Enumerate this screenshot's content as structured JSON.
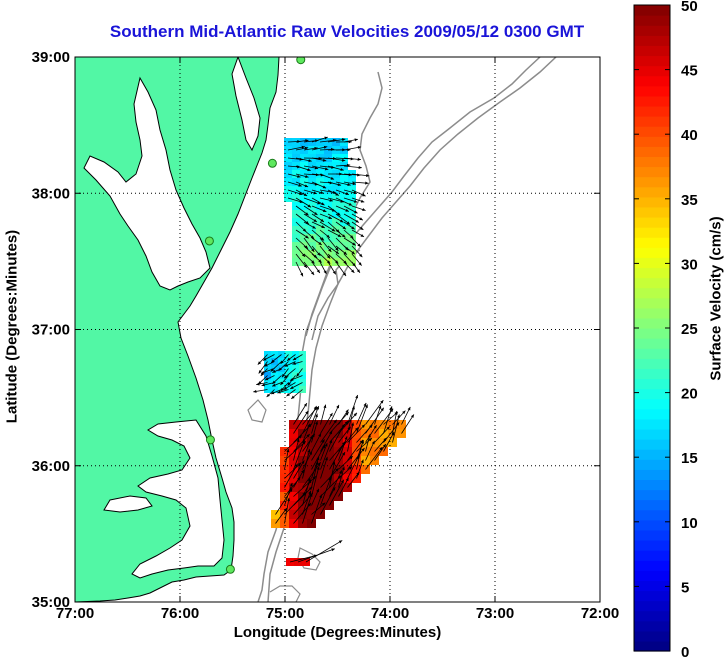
{
  "title": "Southern Mid-Atlantic Raw Velocities 2009/05/12 0300 GMT",
  "x_axis": {
    "label": "Longitude (Degrees:Minutes)",
    "ticks": [
      "77:00",
      "76:00",
      "75:00",
      "74:00",
      "73:00",
      "72:00"
    ]
  },
  "y_axis": {
    "label": "Latitude (Degrees:Minutes)",
    "ticks": [
      "39:00",
      "38:00",
      "37:00",
      "36:00",
      "35:00"
    ]
  },
  "colorbar": {
    "label": "Surface Velocity (cm/s)",
    "ticks": [
      "0",
      "5",
      "10",
      "15",
      "20",
      "25",
      "30",
      "35",
      "40",
      "45",
      "50"
    ],
    "min": 0,
    "max": 50,
    "colormap": "jet"
  },
  "map": {
    "lon_range": [
      -77,
      -72
    ],
    "lat_range": [
      35,
      39
    ],
    "land_color": "#52f7a5",
    "coastline_color": "#000000",
    "bathymetry_color": "#8c8c8c",
    "grid": "dotted",
    "stations": [
      {
        "lon": -74.85,
        "lat": 38.98
      },
      {
        "lon": -75.12,
        "lat": 38.22
      },
      {
        "lon": -75.72,
        "lat": 37.65
      },
      {
        "lon": -75.71,
        "lat": 36.19
      },
      {
        "lon": -75.52,
        "lat": 35.24
      }
    ]
  }
}
